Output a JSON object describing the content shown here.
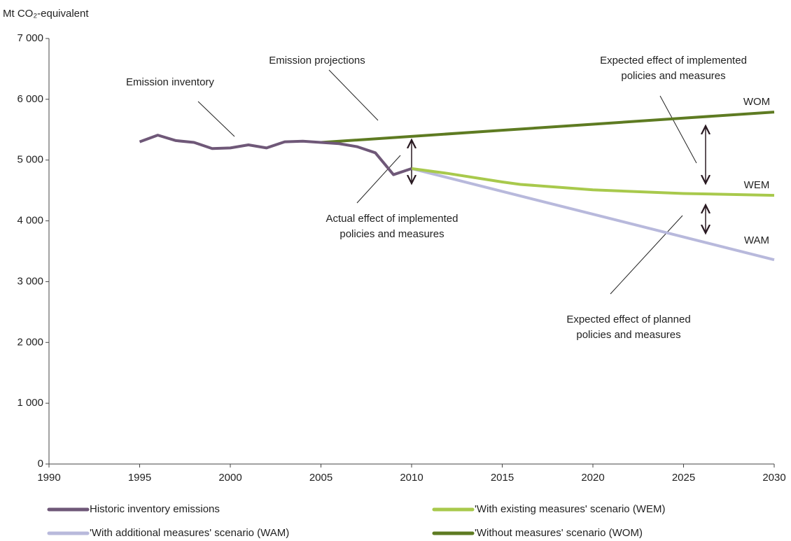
{
  "chart_data": {
    "type": "line",
    "y_label": "Mt CO₂-equivalent",
    "xlim": [
      1990,
      2030
    ],
    "xticks": [
      1990,
      1995,
      2000,
      2005,
      2010,
      2015,
      2020,
      2025,
      2030
    ],
    "ylim": [
      0,
      7000
    ],
    "yticks": [
      {
        "value": 0,
        "label": "0"
      },
      {
        "value": 1000,
        "label": "1 000"
      },
      {
        "value": 2000,
        "label": "2 000"
      },
      {
        "value": 3000,
        "label": "3 000"
      },
      {
        "value": 4000,
        "label": "4 000"
      },
      {
        "value": 5000,
        "label": "5 000"
      },
      {
        "value": 6000,
        "label": "6 000"
      },
      {
        "value": 7000,
        "label": "7 000"
      }
    ],
    "series": [
      {
        "name": "Historic inventory emissions",
        "color": "#6f5878",
        "x": [
          1995,
          1996,
          1997,
          1998,
          1999,
          2000,
          2001,
          2002,
          2003,
          2004,
          2005,
          2006,
          2007,
          2008,
          2009,
          2010
        ],
        "values": [
          5300,
          5410,
          5320,
          5290,
          5190,
          5200,
          5250,
          5200,
          5300,
          5310,
          5290,
          5270,
          5220,
          5120,
          4760,
          4860
        ]
      },
      {
        "name": "'With existing measures' scenario (WEM)",
        "color": "#a8c94c",
        "x": [
          2010,
          2012,
          2015,
          2016,
          2020,
          2025,
          2030
        ],
        "values": [
          4860,
          4780,
          4640,
          4600,
          4510,
          4450,
          4420
        ]
      },
      {
        "name": "'With additional measures' scenario (WAM)",
        "color": "#b8b9dc",
        "x": [
          2010,
          2030
        ],
        "values": [
          4860,
          3360
        ]
      },
      {
        "name": "'Without measures' scenario (WOM)",
        "color": "#5e7b22",
        "x": [
          2005,
          2010,
          2015,
          2020,
          2025,
          2030
        ],
        "values": [
          5290,
          5390,
          5490,
          5590,
          5690,
          5790
        ]
      }
    ],
    "annotations": [
      [
        "Emission inventory"
      ],
      [
        "Emission projections"
      ],
      [
        "Expected effect of implemented",
        "policies and measures"
      ],
      [
        "Actual effect of implemented",
        "policies and measures"
      ],
      [
        "Expected effect of planned",
        "policies and measures"
      ],
      [
        "WOM"
      ],
      [
        "WEM"
      ],
      [
        "WAM"
      ]
    ]
  }
}
